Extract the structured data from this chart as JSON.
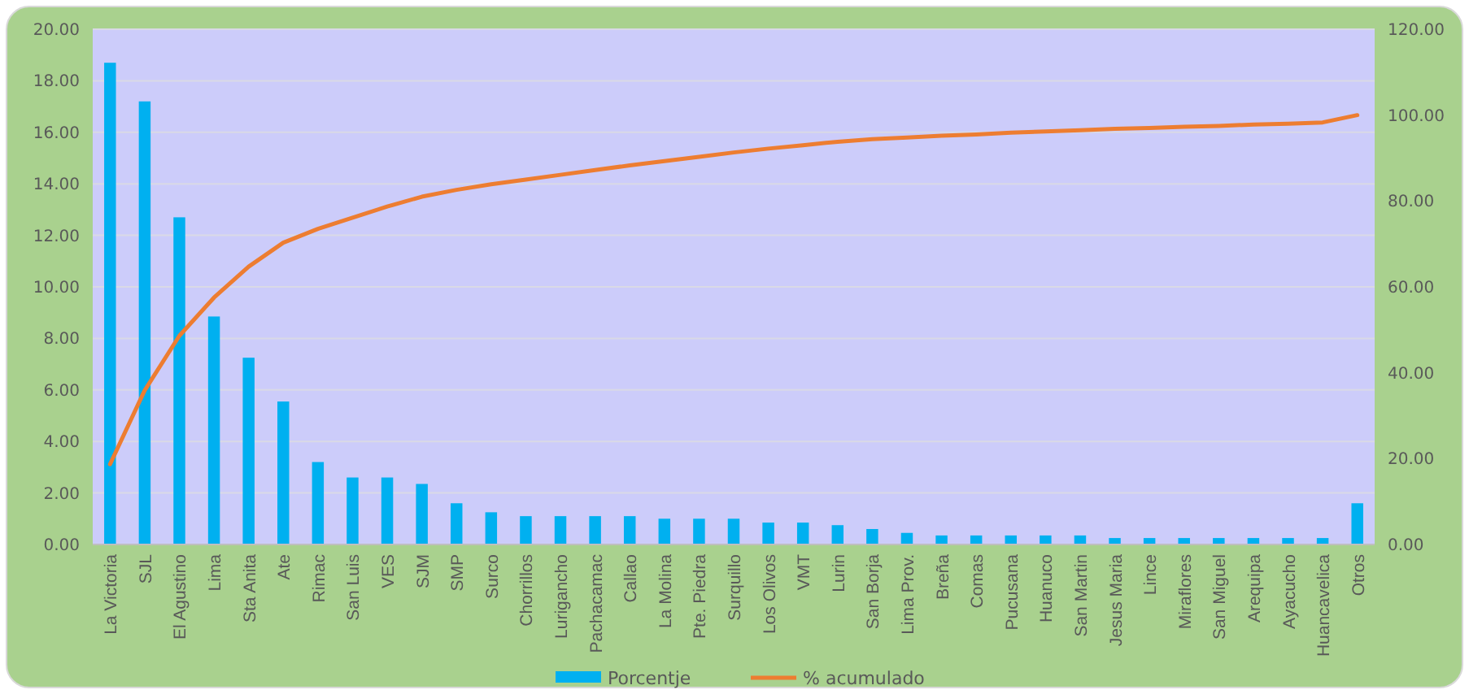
{
  "chart_data": {
    "type": "bar",
    "categories": [
      "La Victoria",
      "SJL",
      "El Agustino",
      "Lima",
      "Sta Anita",
      "Ate",
      "Rimac",
      "San Luis",
      "VES",
      "SJM",
      "SMP",
      "Surco",
      "Chorrillos",
      "Lurigancho",
      "Pachacamac",
      "Callao",
      "La Molina",
      "Pte. Piedra",
      "Surquillo",
      "Los Olivos",
      "VMT",
      "Lurin",
      "San Borja",
      "Lima Prov.",
      "Breña",
      "Comas",
      "Pucusana",
      "Huanuco",
      "San Martin",
      "Jesus Maria",
      "Lince",
      "Miraflores",
      "San Miguel",
      "Arequipa",
      "Ayacucho",
      "Huancavelica",
      "Otros"
    ],
    "series": [
      {
        "name": "Porcentje",
        "color": "#00b0f0",
        "values": [
          18.7,
          17.2,
          12.7,
          8.85,
          7.25,
          5.55,
          3.2,
          2.6,
          2.6,
          2.35,
          1.6,
          1.25,
          1.1,
          1.1,
          1.1,
          1.1,
          1.0,
          1.0,
          1.0,
          0.85,
          0.85,
          0.75,
          0.6,
          0.45,
          0.35,
          0.35,
          0.35,
          0.35,
          0.35,
          0.25,
          0.25,
          0.25,
          0.25,
          0.25,
          0.25,
          0.25,
          1.6
        ]
      },
      {
        "name": "% acumulado",
        "type": "line",
        "axis": "y2",
        "color": "#ed7d31",
        "values": [
          18.7,
          35.9,
          48.6,
          57.5,
          64.7,
          70.3,
          73.5,
          76.1,
          78.7,
          81.0,
          82.6,
          83.9,
          85.0,
          86.1,
          87.2,
          88.3,
          89.3,
          90.3,
          91.3,
          92.2,
          93.0,
          93.8,
          94.4,
          94.8,
          95.2,
          95.5,
          95.9,
          96.2,
          96.5,
          96.8,
          97.0,
          97.3,
          97.5,
          97.8,
          98.0,
          98.3,
          100
        ]
      }
    ],
    "ylim": [
      0,
      20
    ],
    "yticks": [
      {
        "value": 0,
        "label": "0.00"
      },
      {
        "value": 2,
        "label": "2.00"
      },
      {
        "value": 4,
        "label": "4.00"
      },
      {
        "value": 6,
        "label": "6.00"
      },
      {
        "value": 8,
        "label": "8.00"
      },
      {
        "value": 10,
        "label": "10.00"
      },
      {
        "value": 12,
        "label": "12.00"
      },
      {
        "value": 14,
        "label": "14.00"
      },
      {
        "value": 16,
        "label": "16.00"
      },
      {
        "value": 18,
        "label": "18.00"
      },
      {
        "value": 20,
        "label": "20.00"
      }
    ],
    "y2lim": [
      0,
      120
    ],
    "y2ticks": [
      {
        "value": 0,
        "label": "0.00"
      },
      {
        "value": 20,
        "label": "20.00"
      },
      {
        "value": 40,
        "label": "40.00"
      },
      {
        "value": 60,
        "label": "60.00"
      },
      {
        "value": 80,
        "label": "80.00"
      },
      {
        "value": 100,
        "label": "100.00"
      },
      {
        "value": 120,
        "label": "120.00"
      }
    ],
    "grid": "y",
    "legend": "bottom",
    "marker": "none",
    "line_style": "solid"
  }
}
